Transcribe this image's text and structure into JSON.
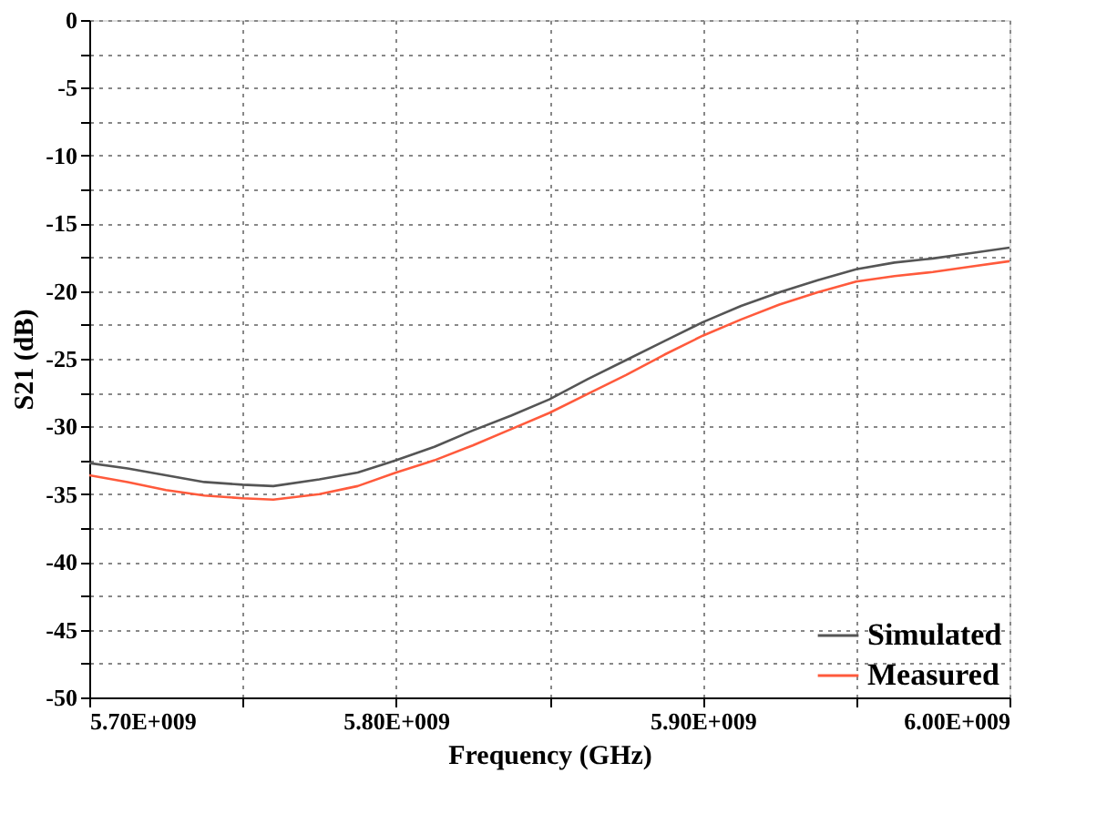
{
  "chart_data": {
    "type": "line",
    "xlabel": "Frequency (GHz)",
    "ylabel": "S21 (dB)",
    "x": [
      5700000000.0,
      5712500000.0,
      5725000000.0,
      5737500000.0,
      5750000000.0,
      5760000000.0,
      5775000000.0,
      5787500000.0,
      5800000000.0,
      5812500000.0,
      5825000000.0,
      5837500000.0,
      5850000000.0,
      5862500000.0,
      5875000000.0,
      5887500000.0,
      5900000000.0,
      5912500000.0,
      5925000000.0,
      5937500000.0,
      5950000000.0,
      5962500000.0,
      5975000000.0,
      5987500000.0,
      6000000000.0
    ],
    "series": [
      {
        "name": "Simulated",
        "color": "#555555",
        "values": [
          -32.7,
          -33.1,
          -33.6,
          -34.1,
          -34.3,
          -34.4,
          -33.9,
          -33.4,
          -32.5,
          -31.5,
          -30.3,
          -29.2,
          -28.0,
          -26.5,
          -25.1,
          -23.7,
          -22.3,
          -21.1,
          -20.1,
          -19.2,
          -18.4,
          -17.9,
          -17.6,
          -17.2,
          -16.8
        ]
      },
      {
        "name": "Measured",
        "color": "#ff5a3c",
        "values": [
          -33.6,
          -34.1,
          -34.7,
          -35.1,
          -35.3,
          -35.4,
          -35.0,
          -34.4,
          -33.4,
          -32.5,
          -31.4,
          -30.2,
          -29.0,
          -27.6,
          -26.2,
          -24.7,
          -23.3,
          -22.1,
          -21.0,
          -20.1,
          -19.3,
          -18.9,
          -18.6,
          -18.2,
          -17.8
        ]
      }
    ],
    "xlim": [
      5700000000.0,
      6000000000.0
    ],
    "xticks": [
      {
        "value": 5700000000.0,
        "label": "5.70E+009"
      },
      {
        "value": 5750000000.0,
        "label": null
      },
      {
        "value": 5800000000.0,
        "label": "5.80E+009"
      },
      {
        "value": 5850000000.0,
        "label": null
      },
      {
        "value": 5900000000.0,
        "label": "5.90E+009"
      },
      {
        "value": 5950000000.0,
        "label": null
      },
      {
        "value": 6000000000.0,
        "label": "6.00E+009"
      }
    ],
    "ylim": [
      -50,
      0
    ],
    "yticks": [
      -50,
      {
        "value": -47.5,
        "label": null
      },
      -45,
      {
        "value": -42.5,
        "label": null
      },
      -40,
      {
        "value": -37.5,
        "label": null
      },
      -35,
      {
        "value": -32.5,
        "label": null
      },
      -30,
      {
        "value": -27.5,
        "label": null
      },
      -25,
      {
        "value": -22.5,
        "label": null
      },
      -20,
      {
        "value": -17.5,
        "label": null
      },
      -15,
      {
        "value": -12.5,
        "label": null
      },
      -10,
      {
        "value": -7.5,
        "label": null
      },
      -5,
      {
        "value": -2.5,
        "label": null
      },
      0
    ],
    "grid": true,
    "legend": "bottom right"
  }
}
